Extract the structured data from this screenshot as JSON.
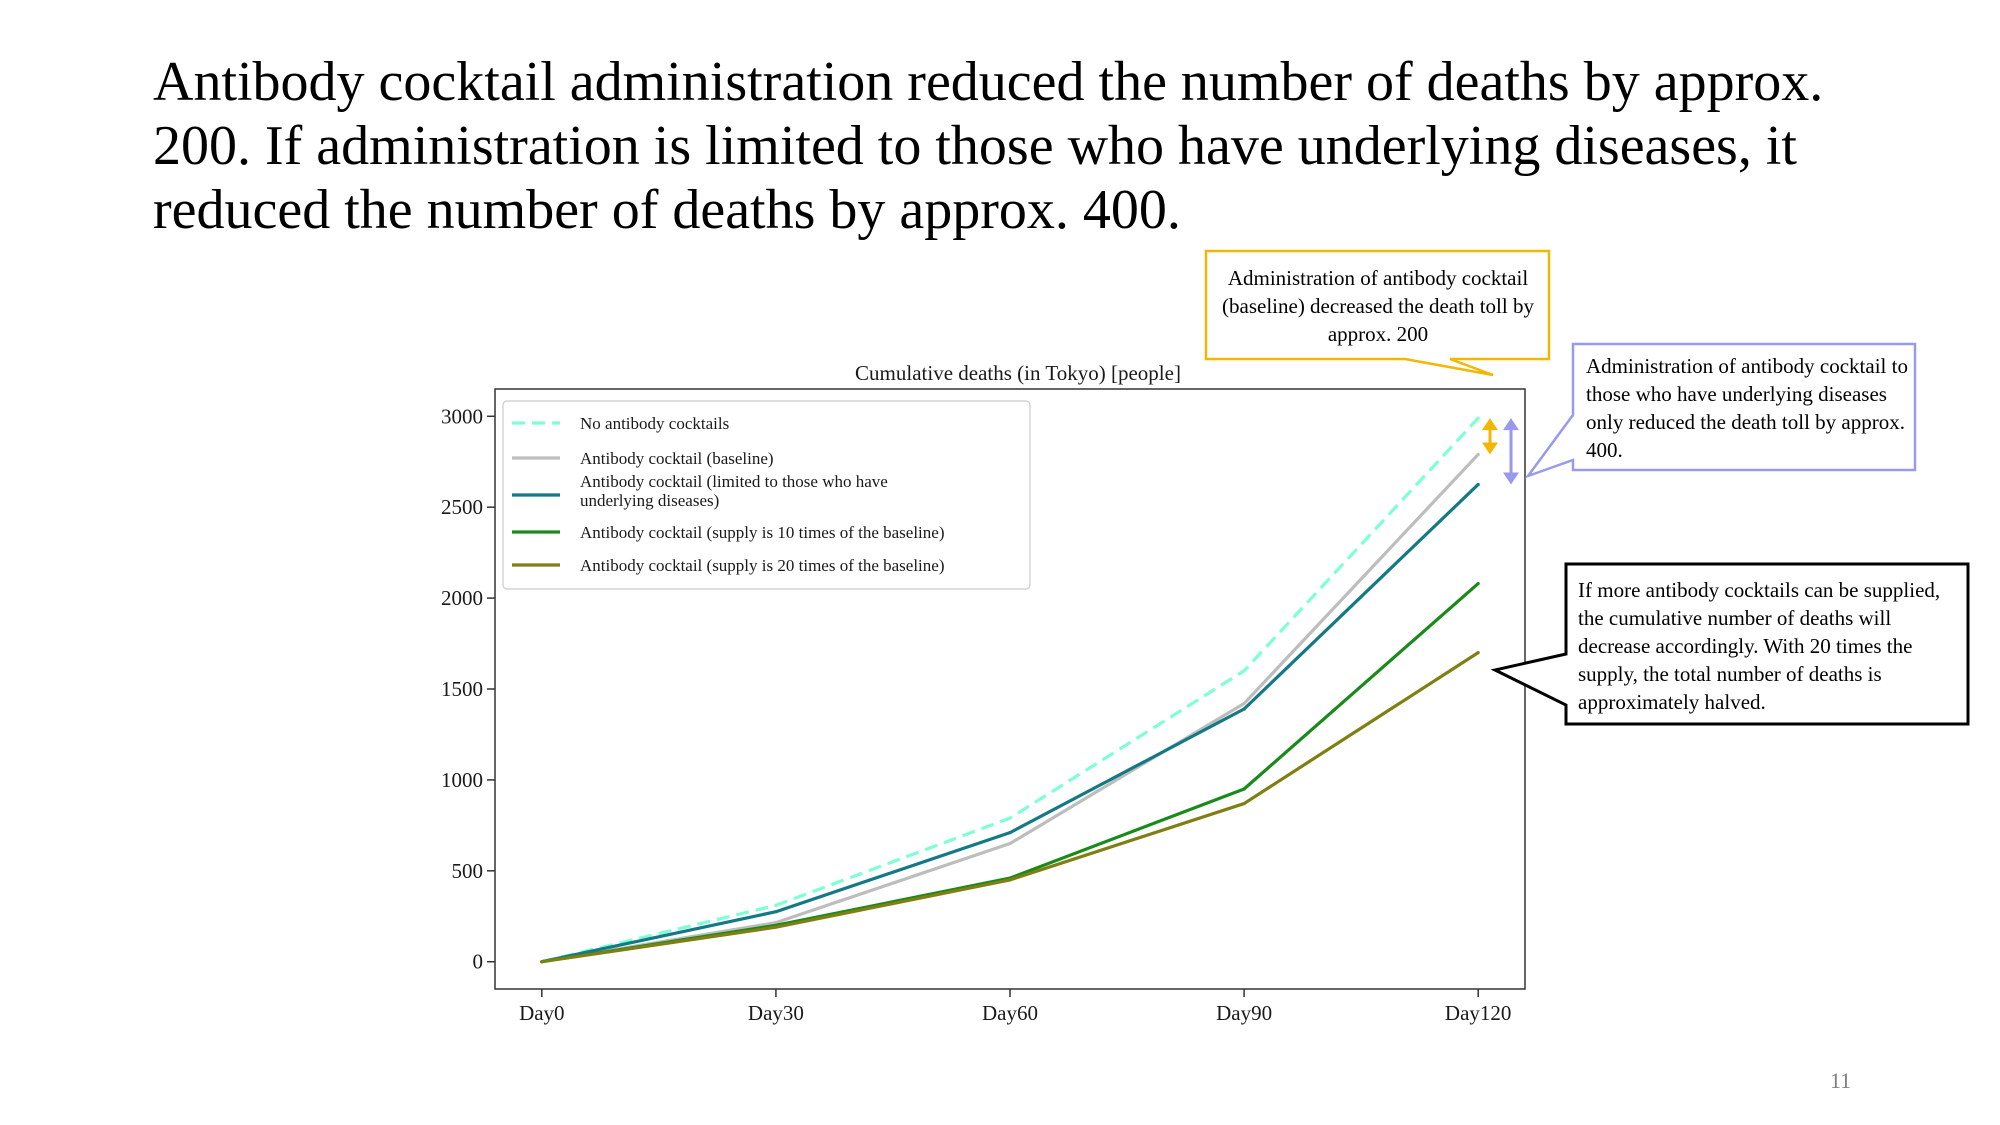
{
  "slide": {
    "headline": "Antibody cocktail administration reduced the number of deaths by approx. 200. If administration is limited to those who have underlying diseases, it reduced the number of deaths by approx. 400.",
    "page_number": "11"
  },
  "callouts": {
    "baseline": {
      "text": "Administration of antibody cocktail (baseline) decreased the death toll by approx. 200",
      "border_color": "#F2B705"
    },
    "underlying": {
      "text": "Administration of antibody cocktail to those who have underlying diseases only reduced the death toll by approx. 400.",
      "border_color": "#9999EE"
    },
    "supply": {
      "text": "If more antibody cocktails can be supplied, the cumulative number of deaths will decrease accordingly. With 20 times the supply, the total number of deaths is approximately halved.",
      "border_color": "#000000"
    }
  },
  "arrows": {
    "baseline_color": "#F2B705",
    "underlying_color": "#9999EE"
  },
  "chart_data": {
    "type": "line",
    "title": "Cumulative deaths (in Tokyo) [people]",
    "xlabel": "",
    "ylabel": "",
    "categories": [
      "Day0",
      "Day30",
      "Day60",
      "Day90",
      "Day120"
    ],
    "x": [
      0,
      30,
      60,
      90,
      120
    ],
    "xlim": [
      -6,
      126
    ],
    "ylim": [
      -150,
      3150
    ],
    "yticks": [
      0,
      500,
      1000,
      1500,
      2000,
      2500,
      3000
    ],
    "grid": false,
    "legend_position": "top-left",
    "series": [
      {
        "name": "No antibody cocktails",
        "color": "#7FFFD4",
        "dashed": true,
        "values": [
          0,
          310,
          790,
          1600,
          2990
        ]
      },
      {
        "name": "Antibody cocktail (baseline)",
        "color": "#BDBDBD",
        "dashed": false,
        "values": [
          0,
          215,
          650,
          1420,
          2790
        ]
      },
      {
        "name": "Antibody cocktail (limited to those who have underlying diseases)",
        "legend_lines": [
          "Antibody cocktail (limited to those who have",
          "underlying diseases)"
        ],
        "color": "#137A85",
        "dashed": false,
        "values": [
          0,
          275,
          710,
          1390,
          2625
        ]
      },
      {
        "name": "Antibody cocktail (supply is 10 times of the baseline)",
        "color": "#1A8A1A",
        "dashed": false,
        "values": [
          0,
          200,
          460,
          950,
          2080
        ]
      },
      {
        "name": "Antibody cocktail (supply is 20 times of the baseline)",
        "color": "#7F7F14",
        "dashed": false,
        "values": [
          0,
          190,
          450,
          870,
          1700
        ]
      }
    ]
  }
}
